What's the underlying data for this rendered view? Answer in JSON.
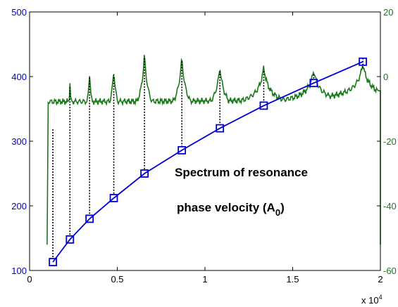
{
  "chart_data": {
    "type": "line",
    "title": "",
    "xlim": [
      0,
      20000
    ],
    "x_ticks": [
      0,
      5000,
      10000,
      15000,
      20000
    ],
    "x_tick_labels": [
      "0",
      "0.5",
      "1",
      "1.5",
      "2"
    ],
    "x_multiplier_label": "x 10",
    "x_multiplier_exp": "4",
    "ylim_left": [
      100,
      500
    ],
    "y_left_ticks": [
      100,
      200,
      300,
      400,
      500
    ],
    "ylim_right": [
      -60,
      20
    ],
    "y_right_ticks": [
      -60,
      -40,
      -20,
      0,
      20
    ],
    "y_right_tick_labels": [
      "-60",
      "-40",
      "-20",
      "0",
      "20"
    ],
    "annotations": {
      "spectrum": "Spectrum of resonance",
      "phase_main": "phase velocity (A",
      "phase_sub": "0",
      "phase_close": ")"
    },
    "colors": {
      "phase": "#0000d0",
      "spectrum": "#1a7a1a",
      "drop_lines": "#000000",
      "axes": "#000000"
    },
    "series": [
      {
        "axis": "left",
        "marker": "square",
        "x": [
          1330,
          2300,
          3420,
          4800,
          6550,
          8680,
          10850,
          13350,
          16200,
          19000
        ],
        "values": [
          113,
          148,
          180,
          212,
          250,
          286,
          320,
          355,
          390,
          423
        ]
      },
      {
        "axis": "right",
        "peaks_x": [
          1330,
          2300,
          3420,
          4800,
          6550,
          8680,
          10850,
          13350,
          16200,
          19000
        ],
        "peaks_y": [
          -15,
          -2,
          1,
          2,
          7,
          6,
          3,
          3,
          2,
          4
        ],
        "baseline_y": [
          -40,
          -24,
          -20,
          -17,
          -16,
          -15,
          -13.5,
          -10,
          -9,
          -8
        ],
        "x_start": 1000,
        "x_end": 20000,
        "start_y": -52,
        "end_y": -52
      }
    ],
    "drop_lines": true
  }
}
